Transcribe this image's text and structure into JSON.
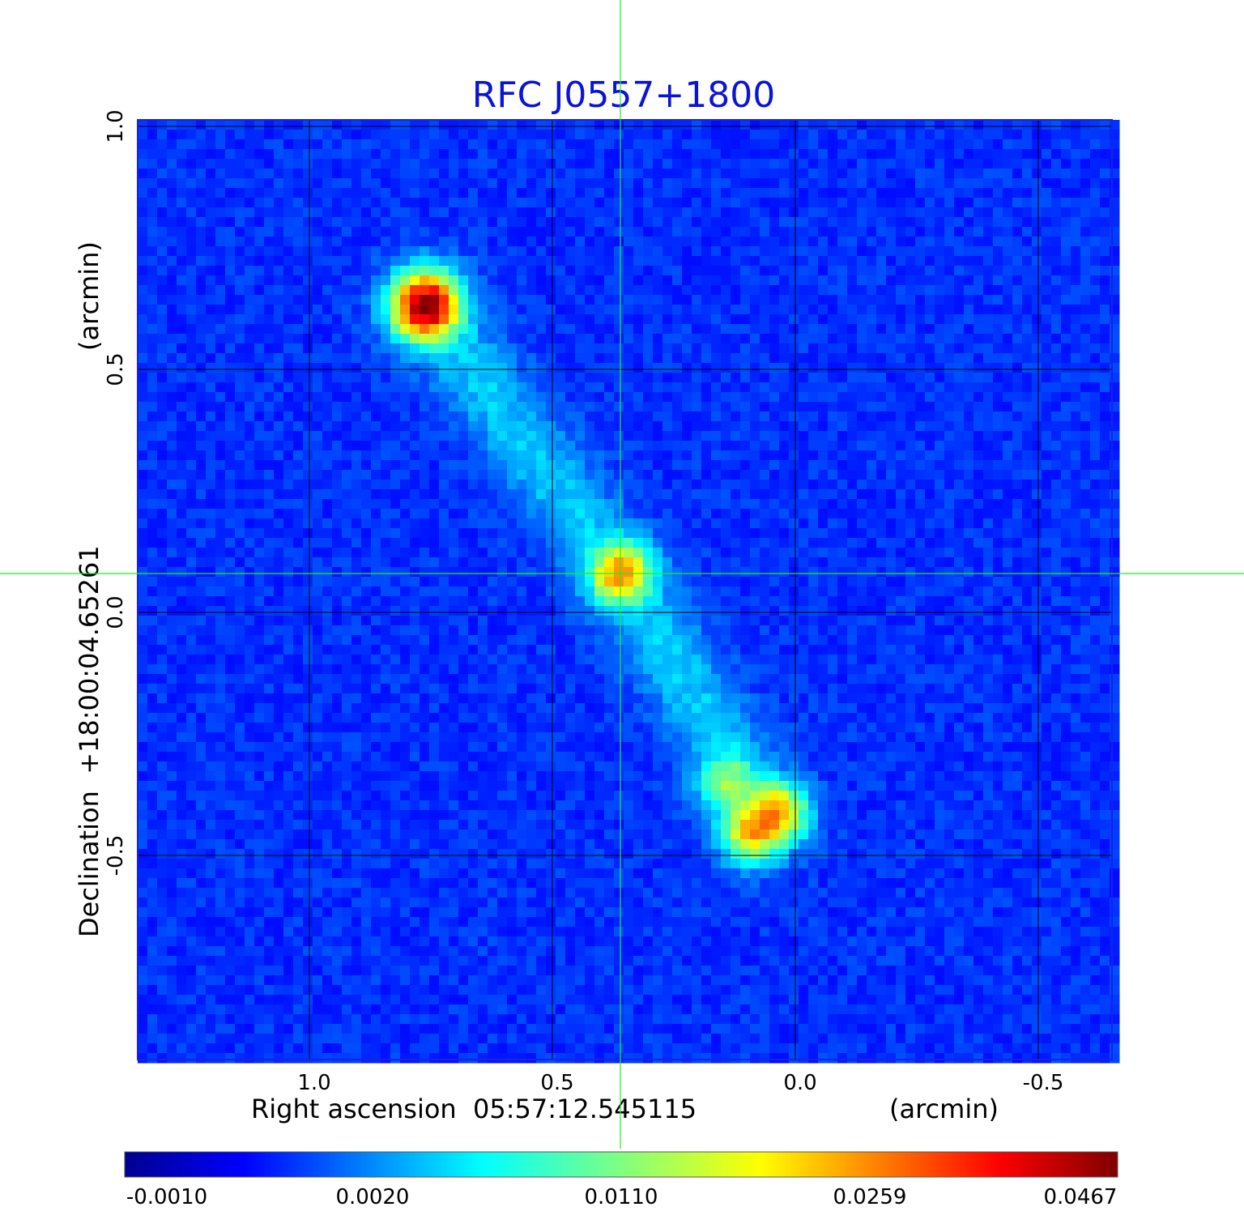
{
  "chart_data": {
    "type": "heatmap",
    "title": "RFC J0557+1800",
    "xlabel": "Right ascension  05:57:12.545115",
    "xunit": "(arcmin)",
    "ylabel": "Declination  +18:00:04.65261",
    "yunit": "(arcmin)",
    "xlim": [
      1.35,
      -0.65
    ],
    "ylim": [
      -0.92,
      1.01
    ],
    "x_ticks": [
      1.0,
      0.5,
      0.0,
      -0.5
    ],
    "x_tick_labels": [
      "1.0",
      "0.5",
      "0.0",
      "-0.5"
    ],
    "y_ticks": [
      1.0,
      0.5,
      0.0,
      -0.5
    ],
    "y_tick_labels": [
      "1.0",
      "0.5",
      "0.0",
      "-0.5"
    ],
    "grid": true,
    "colormap": "jet",
    "crosshair": {
      "x": 0.36,
      "y": 0.08,
      "color": "#22ee22"
    },
    "colorbar": {
      "ticks": [
        "-0.0010",
        "0.0020",
        "0.0110",
        "0.0259",
        "0.0467"
      ],
      "range": [
        -0.001,
        0.0467
      ]
    },
    "sources": [
      {
        "x": 0.76,
        "y": 0.63,
        "peak": 0.0467
      },
      {
        "x": 0.36,
        "y": 0.08,
        "peak": 0.02
      },
      {
        "x": 0.14,
        "y": -0.35,
        "peak": 0.008
      },
      {
        "x": 0.04,
        "y": -0.41,
        "peak": 0.019
      },
      {
        "x": 0.09,
        "y": -0.45,
        "peak": 0.017
      }
    ]
  }
}
